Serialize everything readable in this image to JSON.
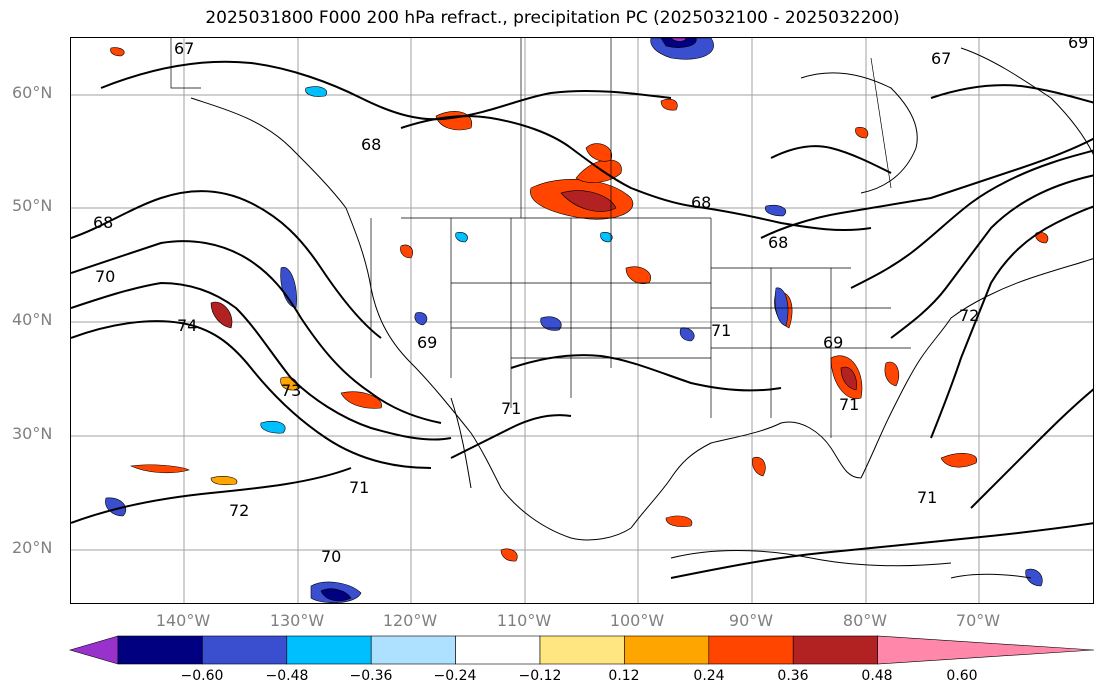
{
  "title": "2025031800 F000 200 hPa refract., precipitation PC (2025032100 - 2025032200)",
  "map": {
    "lat_labels": [
      "60°N",
      "50°N",
      "40°N",
      "30°N",
      "20°N"
    ],
    "lon_labels": [
      "140°W",
      "130°W",
      "120°W",
      "110°W",
      "100°W",
      "90°W",
      "80°W",
      "70°W"
    ],
    "contour_labels": [
      "67",
      "67",
      "69",
      "68",
      "68",
      "70",
      "74",
      "73",
      "72",
      "71",
      "70",
      "68",
      "69",
      "71",
      "71",
      "69",
      "71",
      "71",
      "72",
      "68"
    ]
  },
  "colorbar": {
    "ticks": [
      "−0.60",
      "−0.48",
      "−0.36",
      "−0.24",
      "−0.12",
      "0.12",
      "0.24",
      "0.36",
      "0.48",
      "0.60"
    ],
    "colors": [
      "#9932cc",
      "#000080",
      "#3a4fcf",
      "#00bfff",
      "#aee0ff",
      "#ffffff",
      "#ffe680",
      "#ffa500",
      "#ff4500",
      "#b22222",
      "#ff88aa"
    ]
  }
}
